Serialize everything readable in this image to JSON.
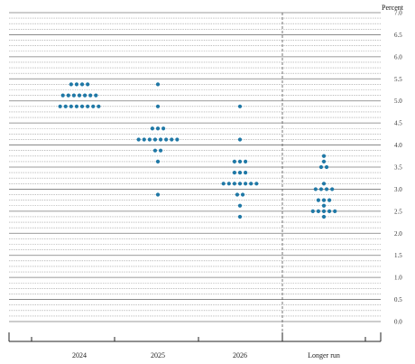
{
  "chart_data": {
    "type": "scatter",
    "title": "",
    "xlabel": "",
    "ylabel": "",
    "unit_label": "Percent",
    "ylim": [
      0,
      7.0
    ],
    "yticks": [
      7.0,
      6.5,
      6.0,
      5.5,
      5.0,
      4.5,
      4.0,
      3.5,
      3.0,
      2.5,
      2.0,
      1.5,
      1.0,
      0.5,
      0.0
    ],
    "ytick_labels": [
      "7.0",
      "6.5",
      "6.0",
      "5.5",
      "5.0",
      "4.5",
      "4.0",
      "3.5",
      "3.0",
      "2.5",
      "2.0",
      "1.5",
      "1.0",
      "0.5",
      "0.0"
    ],
    "grid": "horizontal dotted at 0.125, solid at 0.5",
    "categories": [
      "2024",
      "2025",
      "2026",
      "Longer run"
    ],
    "dot_color": "#1f78a6",
    "groups": [
      {
        "category": "2024",
        "points": [
          {
            "y": 5.375,
            "count": 4
          },
          {
            "y": 5.125,
            "count": 7
          },
          {
            "y": 4.875,
            "count": 8
          }
        ]
      },
      {
        "category": "2025",
        "points": [
          {
            "y": 5.375,
            "count": 1
          },
          {
            "y": 4.875,
            "count": 1
          },
          {
            "y": 4.375,
            "count": 3
          },
          {
            "y": 4.125,
            "count": 8
          },
          {
            "y": 3.875,
            "count": 2
          },
          {
            "y": 3.625,
            "count": 1
          },
          {
            "y": 2.875,
            "count": 1
          }
        ]
      },
      {
        "category": "2026",
        "points": [
          {
            "y": 4.875,
            "count": 1
          },
          {
            "y": 4.125,
            "count": 1
          },
          {
            "y": 3.625,
            "count": 3
          },
          {
            "y": 3.375,
            "count": 3
          },
          {
            "y": 3.125,
            "count": 7
          },
          {
            "y": 2.875,
            "count": 2
          },
          {
            "y": 2.625,
            "count": 1
          },
          {
            "y": 2.375,
            "count": 1
          }
        ]
      },
      {
        "category": "Longer run",
        "points": [
          {
            "y": 3.75,
            "count": 1
          },
          {
            "y": 3.625,
            "count": 1
          },
          {
            "y": 3.5,
            "count": 2
          },
          {
            "y": 3.125,
            "count": 1
          },
          {
            "y": 3.0,
            "count": 4
          },
          {
            "y": 2.75,
            "count": 3
          },
          {
            "y": 2.625,
            "count": 1
          },
          {
            "y": 2.5,
            "count": 5
          },
          {
            "y": 2.375,
            "count": 1
          }
        ]
      }
    ]
  }
}
